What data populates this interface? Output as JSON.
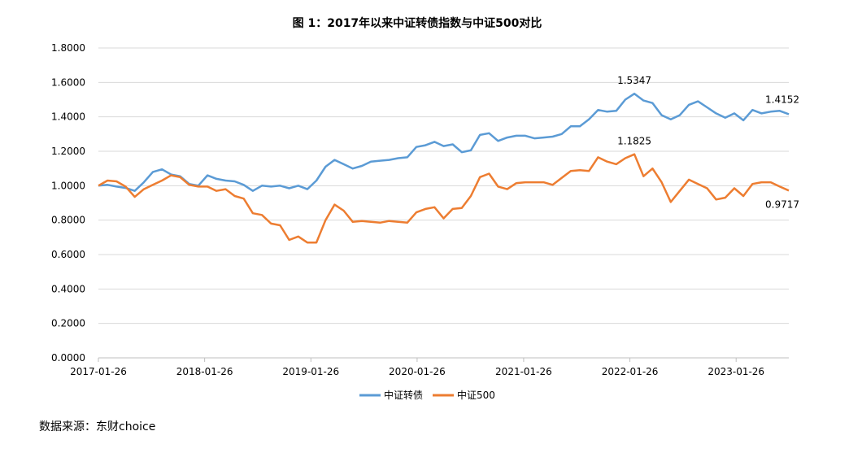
{
  "source_text": "数据来源：东财choice",
  "chart_data": {
    "type": "line",
    "title": "图 1：2017年以来中证转债指数与中证500对比",
    "xlabel": "",
    "ylabel": "",
    "ylim": [
      0,
      1.8
    ],
    "yticks": [
      "0.0000",
      "0.2000",
      "0.4000",
      "0.6000",
      "0.8000",
      "1.0000",
      "1.2000",
      "1.4000",
      "1.6000",
      "1.8000"
    ],
    "x_start": "2017-01-26",
    "x_end": "2023-07-26",
    "xticks": [
      "2017-01-26",
      "2018-01-26",
      "2019-01-26",
      "2020-01-26",
      "2021-01-26",
      "2022-01-26",
      "2023-01-26"
    ],
    "grid": "horizontal",
    "legend": "bottom-center",
    "colors": {
      "中证转债": "#5b9bd5",
      "中证500": "#ed7d31"
    },
    "series": [
      {
        "name": "中证转债",
        "color": "#5b9bd5",
        "values": [
          1.0,
          1.005,
          0.995,
          0.987,
          0.97,
          1.02,
          1.08,
          1.095,
          1.065,
          1.055,
          1.01,
          1.0,
          1.06,
          1.04,
          1.03,
          1.025,
          1.005,
          0.97,
          1.0,
          0.995,
          1.0,
          0.985,
          1.0,
          0.98,
          1.03,
          1.11,
          1.15,
          1.125,
          1.1,
          1.115,
          1.14,
          1.145,
          1.15,
          1.16,
          1.165,
          1.225,
          1.235,
          1.255,
          1.23,
          1.24,
          1.195,
          1.205,
          1.295,
          1.305,
          1.26,
          1.28,
          1.29,
          1.29,
          1.275,
          1.28,
          1.285,
          1.3,
          1.345,
          1.345,
          1.385,
          1.44,
          1.43,
          1.435,
          1.5,
          1.5347,
          1.495,
          1.48,
          1.41,
          1.385,
          1.41,
          1.47,
          1.49,
          1.455,
          1.42,
          1.395,
          1.42,
          1.38,
          1.44,
          1.42,
          1.43,
          1.435,
          1.4152
        ]
      },
      {
        "name": "中证500",
        "color": "#ed7d31",
        "values": [
          1.0,
          1.03,
          1.025,
          0.995,
          0.935,
          0.98,
          1.005,
          1.03,
          1.06,
          1.05,
          1.005,
          0.995,
          0.995,
          0.97,
          0.98,
          0.94,
          0.925,
          0.84,
          0.83,
          0.78,
          0.77,
          0.685,
          0.705,
          0.67,
          0.67,
          0.8,
          0.89,
          0.855,
          0.79,
          0.795,
          0.79,
          0.785,
          0.795,
          0.79,
          0.785,
          0.845,
          0.865,
          0.875,
          0.81,
          0.865,
          0.87,
          0.94,
          1.05,
          1.07,
          0.995,
          0.98,
          1.015,
          1.02,
          1.02,
          1.02,
          1.005,
          1.045,
          1.085,
          1.09,
          1.085,
          1.165,
          1.14,
          1.125,
          1.16,
          1.1825,
          1.055,
          1.1,
          1.02,
          0.905,
          0.97,
          1.035,
          1.01,
          0.985,
          0.92,
          0.93,
          0.985,
          0.94,
          1.01,
          1.02,
          1.02,
          0.995,
          0.9717
        ]
      }
    ],
    "annotations": [
      {
        "text": "1.5347",
        "series": "中证转债",
        "index": 59
      },
      {
        "text": "1.4152",
        "series": "中证转债",
        "index": 76
      },
      {
        "text": "1.1825",
        "series": "中证500",
        "index": 59
      },
      {
        "text": "0.9717",
        "series": "中证500",
        "index": 76
      }
    ]
  }
}
